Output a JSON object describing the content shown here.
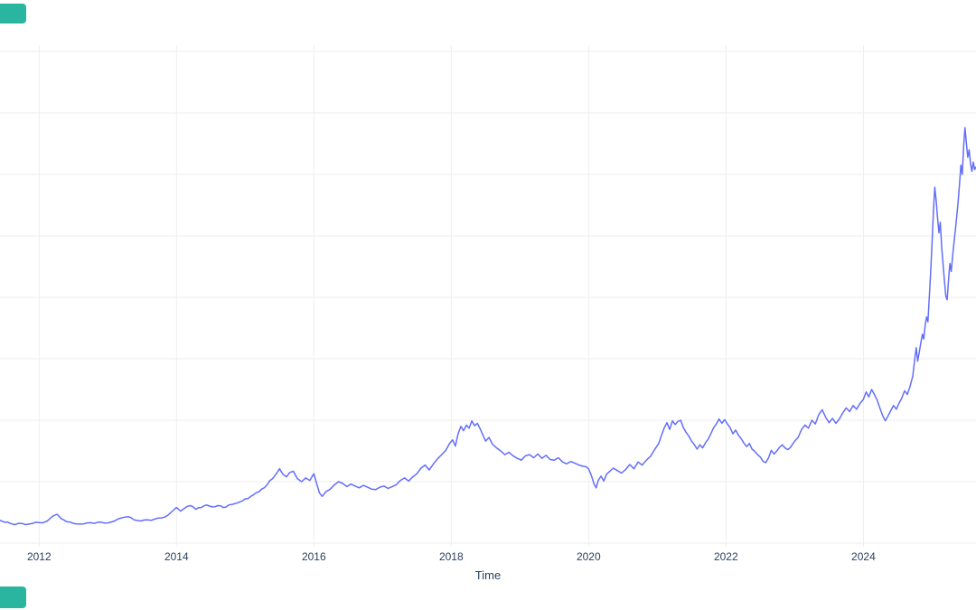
{
  "ui": {
    "background_color": "#ffffff",
    "cropped_buttons": {
      "color": "#29b5a0",
      "description": "two teal button fragments cropped at the left edge, top-left and bottom-left"
    }
  },
  "chart_data": {
    "type": "line",
    "title": "",
    "xlabel": "Time",
    "ylabel": "",
    "legend": false,
    "grid": true,
    "line_color": "#636efa",
    "grid_color": "#eceef1",
    "tick_label_color": "#2a3f5f",
    "x_tick_labels": [
      "2012",
      "2014",
      "2016",
      "2018",
      "2020",
      "2022",
      "2024"
    ],
    "x_ticks": [
      2012,
      2014,
      2016,
      2018,
      2020,
      2022,
      2024
    ],
    "x_range": [
      2011.43,
      2025.64
    ],
    "y_gridline_values": [
      0,
      1,
      2,
      3,
      4,
      5,
      6,
      7,
      8
    ],
    "y_axis_note": "Y-axis tick labels are cropped off the left edge of the screenshot; series values are expressed in units of horizontal-gridline spacing measured up from the lowest visible gridline.",
    "series": [
      {
        "name": "trace0",
        "points": [
          [
            2011.43,
            0.37
          ],
          [
            2011.5,
            0.34
          ],
          [
            2011.58,
            0.32
          ],
          [
            2011.65,
            0.3
          ],
          [
            2011.75,
            0.32
          ],
          [
            2011.85,
            0.31
          ],
          [
            2011.95,
            0.34
          ],
          [
            2012.05,
            0.33
          ],
          [
            2012.12,
            0.36
          ],
          [
            2012.2,
            0.44
          ],
          [
            2012.26,
            0.47
          ],
          [
            2012.32,
            0.4
          ],
          [
            2012.4,
            0.35
          ],
          [
            2012.5,
            0.32
          ],
          [
            2012.6,
            0.31
          ],
          [
            2012.7,
            0.33
          ],
          [
            2012.8,
            0.32
          ],
          [
            2012.9,
            0.34
          ],
          [
            2013.0,
            0.33
          ],
          [
            2013.1,
            0.36
          ],
          [
            2013.2,
            0.41
          ],
          [
            2013.3,
            0.43
          ],
          [
            2013.38,
            0.38
          ],
          [
            2013.48,
            0.36
          ],
          [
            2013.58,
            0.38
          ],
          [
            2013.68,
            0.39
          ],
          [
            2013.78,
            0.41
          ],
          [
            2013.88,
            0.46
          ],
          [
            2013.95,
            0.53
          ],
          [
            2014.0,
            0.58
          ],
          [
            2014.06,
            0.52
          ],
          [
            2014.12,
            0.57
          ],
          [
            2014.2,
            0.61
          ],
          [
            2014.28,
            0.55
          ],
          [
            2014.36,
            0.58
          ],
          [
            2014.44,
            0.62
          ],
          [
            2014.52,
            0.59
          ],
          [
            2014.6,
            0.61
          ],
          [
            2014.68,
            0.58
          ],
          [
            2014.76,
            0.62
          ],
          [
            2014.84,
            0.64
          ],
          [
            2014.92,
            0.67
          ],
          [
            2015.0,
            0.72
          ],
          [
            2015.08,
            0.76
          ],
          [
            2015.16,
            0.82
          ],
          [
            2015.24,
            0.88
          ],
          [
            2015.32,
            0.95
          ],
          [
            2015.4,
            1.05
          ],
          [
            2015.46,
            1.14
          ],
          [
            2015.5,
            1.21
          ],
          [
            2015.55,
            1.12
          ],
          [
            2015.6,
            1.08
          ],
          [
            2015.65,
            1.15
          ],
          [
            2015.7,
            1.17
          ],
          [
            2015.76,
            1.05
          ],
          [
            2015.82,
            1.0
          ],
          [
            2015.88,
            1.06
          ],
          [
            2015.94,
            1.02
          ],
          [
            2016.0,
            1.13
          ],
          [
            2016.04,
            0.97
          ],
          [
            2016.08,
            0.82
          ],
          [
            2016.12,
            0.76
          ],
          [
            2016.18,
            0.84
          ],
          [
            2016.24,
            0.88
          ],
          [
            2016.3,
            0.95
          ],
          [
            2016.36,
            1.0
          ],
          [
            2016.42,
            0.97
          ],
          [
            2016.48,
            0.92
          ],
          [
            2016.54,
            0.96
          ],
          [
            2016.6,
            0.93
          ],
          [
            2016.66,
            0.9
          ],
          [
            2016.72,
            0.94
          ],
          [
            2016.78,
            0.91
          ],
          [
            2016.84,
            0.88
          ],
          [
            2016.9,
            0.87
          ],
          [
            2016.96,
            0.91
          ],
          [
            2017.02,
            0.93
          ],
          [
            2017.08,
            0.89
          ],
          [
            2017.14,
            0.92
          ],
          [
            2017.2,
            0.95
          ],
          [
            2017.26,
            1.02
          ],
          [
            2017.32,
            1.06
          ],
          [
            2017.38,
            1.01
          ],
          [
            2017.44,
            1.08
          ],
          [
            2017.5,
            1.13
          ],
          [
            2017.56,
            1.22
          ],
          [
            2017.62,
            1.27
          ],
          [
            2017.68,
            1.19
          ],
          [
            2017.74,
            1.29
          ],
          [
            2017.8,
            1.37
          ],
          [
            2017.86,
            1.44
          ],
          [
            2017.92,
            1.51
          ],
          [
            2017.98,
            1.63
          ],
          [
            2018.02,
            1.68
          ],
          [
            2018.06,
            1.58
          ],
          [
            2018.1,
            1.78
          ],
          [
            2018.14,
            1.9
          ],
          [
            2018.18,
            1.83
          ],
          [
            2018.22,
            1.92
          ],
          [
            2018.26,
            1.87
          ],
          [
            2018.3,
            1.99
          ],
          [
            2018.34,
            1.91
          ],
          [
            2018.38,
            1.95
          ],
          [
            2018.42,
            1.86
          ],
          [
            2018.46,
            1.76
          ],
          [
            2018.5,
            1.66
          ],
          [
            2018.55,
            1.72
          ],
          [
            2018.6,
            1.61
          ],
          [
            2018.66,
            1.55
          ],
          [
            2018.72,
            1.5
          ],
          [
            2018.78,
            1.44
          ],
          [
            2018.84,
            1.48
          ],
          [
            2018.9,
            1.42
          ],
          [
            2018.96,
            1.38
          ],
          [
            2019.02,
            1.35
          ],
          [
            2019.08,
            1.42
          ],
          [
            2019.14,
            1.44
          ],
          [
            2019.2,
            1.39
          ],
          [
            2019.26,
            1.45
          ],
          [
            2019.32,
            1.38
          ],
          [
            2019.38,
            1.43
          ],
          [
            2019.44,
            1.36
          ],
          [
            2019.5,
            1.35
          ],
          [
            2019.56,
            1.39
          ],
          [
            2019.62,
            1.32
          ],
          [
            2019.68,
            1.29
          ],
          [
            2019.74,
            1.33
          ],
          [
            2019.8,
            1.3
          ],
          [
            2019.86,
            1.27
          ],
          [
            2019.92,
            1.25
          ],
          [
            2020.0,
            1.21
          ],
          [
            2020.04,
            1.1
          ],
          [
            2020.08,
            0.96
          ],
          [
            2020.11,
            0.9
          ],
          [
            2020.14,
            1.02
          ],
          [
            2020.18,
            1.09
          ],
          [
            2020.22,
            1.01
          ],
          [
            2020.26,
            1.12
          ],
          [
            2020.3,
            1.16
          ],
          [
            2020.36,
            1.22
          ],
          [
            2020.42,
            1.18
          ],
          [
            2020.48,
            1.14
          ],
          [
            2020.54,
            1.2
          ],
          [
            2020.6,
            1.28
          ],
          [
            2020.66,
            1.21
          ],
          [
            2020.72,
            1.32
          ],
          [
            2020.78,
            1.27
          ],
          [
            2020.84,
            1.35
          ],
          [
            2020.9,
            1.41
          ],
          [
            2020.96,
            1.52
          ],
          [
            2021.02,
            1.62
          ],
          [
            2021.06,
            1.75
          ],
          [
            2021.1,
            1.87
          ],
          [
            2021.14,
            1.96
          ],
          [
            2021.18,
            1.85
          ],
          [
            2021.22,
            1.99
          ],
          [
            2021.26,
            1.93
          ],
          [
            2021.3,
            1.98
          ],
          [
            2021.34,
            2.0
          ],
          [
            2021.38,
            1.88
          ],
          [
            2021.42,
            1.8
          ],
          [
            2021.46,
            1.74
          ],
          [
            2021.5,
            1.66
          ],
          [
            2021.54,
            1.6
          ],
          [
            2021.58,
            1.53
          ],
          [
            2021.62,
            1.6
          ],
          [
            2021.66,
            1.55
          ],
          [
            2021.7,
            1.63
          ],
          [
            2021.74,
            1.69
          ],
          [
            2021.78,
            1.78
          ],
          [
            2021.82,
            1.88
          ],
          [
            2021.86,
            1.94
          ],
          [
            2021.9,
            2.02
          ],
          [
            2021.94,
            1.95
          ],
          [
            2021.98,
            2.01
          ],
          [
            2022.02,
            1.94
          ],
          [
            2022.06,
            1.88
          ],
          [
            2022.1,
            1.78
          ],
          [
            2022.14,
            1.84
          ],
          [
            2022.18,
            1.76
          ],
          [
            2022.22,
            1.7
          ],
          [
            2022.26,
            1.63
          ],
          [
            2022.3,
            1.57
          ],
          [
            2022.34,
            1.62
          ],
          [
            2022.38,
            1.53
          ],
          [
            2022.42,
            1.49
          ],
          [
            2022.46,
            1.44
          ],
          [
            2022.5,
            1.4
          ],
          [
            2022.54,
            1.33
          ],
          [
            2022.58,
            1.31
          ],
          [
            2022.62,
            1.39
          ],
          [
            2022.66,
            1.51
          ],
          [
            2022.7,
            1.45
          ],
          [
            2022.74,
            1.5
          ],
          [
            2022.78,
            1.56
          ],
          [
            2022.82,
            1.6
          ],
          [
            2022.86,
            1.55
          ],
          [
            2022.9,
            1.52
          ],
          [
            2022.94,
            1.56
          ],
          [
            2023.0,
            1.66
          ],
          [
            2023.05,
            1.72
          ],
          [
            2023.1,
            1.85
          ],
          [
            2023.15,
            1.92
          ],
          [
            2023.2,
            1.87
          ],
          [
            2023.25,
            2.0
          ],
          [
            2023.3,
            1.94
          ],
          [
            2023.35,
            2.09
          ],
          [
            2023.4,
            2.17
          ],
          [
            2023.45,
            2.05
          ],
          [
            2023.5,
            1.96
          ],
          [
            2023.55,
            2.03
          ],
          [
            2023.6,
            1.95
          ],
          [
            2023.65,
            2.02
          ],
          [
            2023.7,
            2.12
          ],
          [
            2023.75,
            2.2
          ],
          [
            2023.8,
            2.14
          ],
          [
            2023.85,
            2.24
          ],
          [
            2023.9,
            2.18
          ],
          [
            2023.95,
            2.27
          ],
          [
            2024.0,
            2.34
          ],
          [
            2024.04,
            2.46
          ],
          [
            2024.08,
            2.38
          ],
          [
            2024.12,
            2.5
          ],
          [
            2024.16,
            2.42
          ],
          [
            2024.2,
            2.33
          ],
          [
            2024.24,
            2.2
          ],
          [
            2024.28,
            2.08
          ],
          [
            2024.32,
            1.99
          ],
          [
            2024.36,
            2.07
          ],
          [
            2024.4,
            2.16
          ],
          [
            2024.44,
            2.24
          ],
          [
            2024.48,
            2.18
          ],
          [
            2024.52,
            2.28
          ],
          [
            2024.56,
            2.36
          ],
          [
            2024.6,
            2.48
          ],
          [
            2024.64,
            2.42
          ],
          [
            2024.68,
            2.55
          ],
          [
            2024.72,
            2.72
          ],
          [
            2024.75,
            3.02
          ],
          [
            2024.77,
            3.18
          ],
          [
            2024.79,
            2.96
          ],
          [
            2024.81,
            3.08
          ],
          [
            2024.84,
            3.28
          ],
          [
            2024.86,
            3.4
          ],
          [
            2024.88,
            3.32
          ],
          [
            2024.9,
            3.55
          ],
          [
            2024.92,
            3.68
          ],
          [
            2024.94,
            3.6
          ],
          [
            2024.96,
            4.0
          ],
          [
            2024.98,
            4.4
          ],
          [
            2025.0,
            4.9
          ],
          [
            2025.02,
            5.4
          ],
          [
            2025.04,
            5.79
          ],
          [
            2025.06,
            5.58
          ],
          [
            2025.08,
            5.3
          ],
          [
            2025.1,
            5.05
          ],
          [
            2025.12,
            5.22
          ],
          [
            2025.14,
            4.82
          ],
          [
            2025.16,
            4.55
          ],
          [
            2025.18,
            4.28
          ],
          [
            2025.2,
            4.02
          ],
          [
            2025.22,
            3.96
          ],
          [
            2025.24,
            4.28
          ],
          [
            2025.26,
            4.55
          ],
          [
            2025.28,
            4.42
          ],
          [
            2025.3,
            4.68
          ],
          [
            2025.32,
            4.9
          ],
          [
            2025.34,
            5.1
          ],
          [
            2025.36,
            5.32
          ],
          [
            2025.38,
            5.55
          ],
          [
            2025.4,
            5.85
          ],
          [
            2025.42,
            6.15
          ],
          [
            2025.44,
            6.0
          ],
          [
            2025.46,
            6.45
          ],
          [
            2025.48,
            6.76
          ],
          [
            2025.5,
            6.5
          ],
          [
            2025.52,
            6.28
          ],
          [
            2025.54,
            6.4
          ],
          [
            2025.56,
            6.18
          ],
          [
            2025.58,
            6.05
          ],
          [
            2025.6,
            6.2
          ],
          [
            2025.62,
            6.08
          ],
          [
            2025.64,
            6.12
          ]
        ]
      }
    ]
  }
}
